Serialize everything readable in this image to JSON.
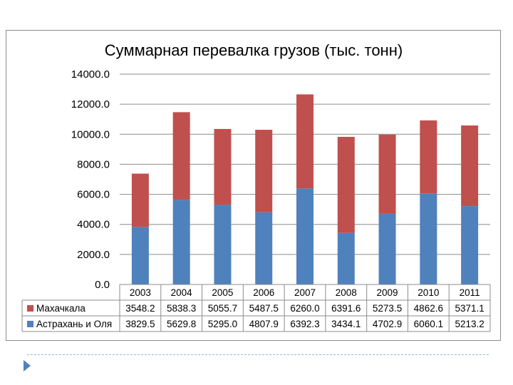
{
  "chart_data": {
    "type": "bar",
    "stacked": true,
    "title": "Суммарная перевалка грузов (тыс. тонн)",
    "categories": [
      "2003",
      "2004",
      "2005",
      "2006",
      "2007",
      "2008",
      "2009",
      "2010",
      "2011"
    ],
    "series": [
      {
        "name": "Астрахань и Оля",
        "color": "#4f81bd",
        "values": [
          3829.5,
          5629.8,
          5295.0,
          4807.9,
          6392.3,
          3434.1,
          4702.9,
          6060.1,
          5213.2
        ],
        "labels": [
          "3829.5",
          "5629.8",
          "5295.0",
          "4807.9",
          "6392.3",
          "3434.1",
          "4702.9",
          "6060.1",
          "5213.2"
        ]
      },
      {
        "name": "Махачкала",
        "color": "#c0504d",
        "values": [
          3548.2,
          5838.3,
          5055.7,
          5487.5,
          6260.0,
          6391.6,
          5273.5,
          4862.6,
          5371.1
        ],
        "labels": [
          "3548.2",
          "5838.3",
          "5055.7",
          "5487.5",
          "6260.0",
          "6391.6",
          "5273.5",
          "4862.6",
          "5371.1"
        ]
      }
    ],
    "ylim": [
      0,
      14000
    ],
    "yticks": [
      "0.0",
      "2000.0",
      "4000.0",
      "6000.0",
      "8000.0",
      "10000.0",
      "12000.0",
      "14000.0"
    ],
    "grid": true,
    "legend": "data-table"
  }
}
